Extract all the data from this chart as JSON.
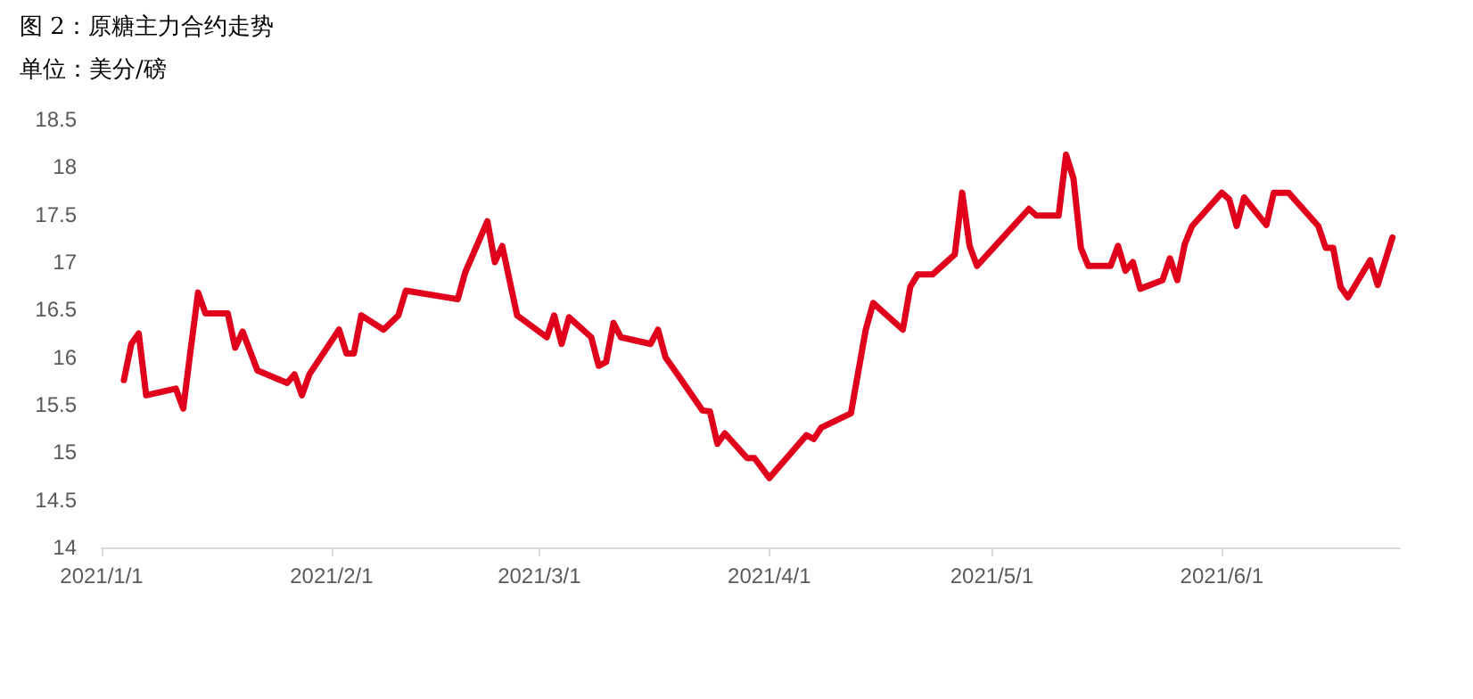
{
  "chart_data": {
    "type": "line",
    "title": "图 2：原糖主力合约走势",
    "subtitle": "单位：美分/磅",
    "x": [
      "2021-01-04",
      "2021-01-05",
      "2021-01-06",
      "2021-01-07",
      "2021-01-11",
      "2021-01-12",
      "2021-01-13",
      "2021-01-14",
      "2021-01-15",
      "2021-01-18",
      "2021-01-19",
      "2021-01-20",
      "2021-01-22",
      "2021-01-26",
      "2021-01-27",
      "2021-01-28",
      "2021-01-29",
      "2021-02-02",
      "2021-02-03",
      "2021-02-04",
      "2021-02-05",
      "2021-02-08",
      "2021-02-10",
      "2021-02-11",
      "2021-02-18",
      "2021-02-19",
      "2021-02-22",
      "2021-02-23",
      "2021-02-24",
      "2021-02-26",
      "2021-03-02",
      "2021-03-03",
      "2021-03-04",
      "2021-03-05",
      "2021-03-08",
      "2021-03-09",
      "2021-03-10",
      "2021-03-11",
      "2021-03-12",
      "2021-03-16",
      "2021-03-17",
      "2021-03-18",
      "2021-03-19",
      "2021-03-23",
      "2021-03-24",
      "2021-03-25",
      "2021-03-26",
      "2021-03-29",
      "2021-03-30",
      "2021-04-01",
      "2021-04-06",
      "2021-04-07",
      "2021-04-08",
      "2021-04-12",
      "2021-04-14",
      "2021-04-15",
      "2021-04-19",
      "2021-04-20",
      "2021-04-21",
      "2021-04-23",
      "2021-04-26",
      "2021-04-27",
      "2021-04-28",
      "2021-04-29",
      "2021-05-06",
      "2021-05-07",
      "2021-05-10",
      "2021-05-11",
      "2021-05-12",
      "2021-05-13",
      "2021-05-14",
      "2021-05-17",
      "2021-05-18",
      "2021-05-19",
      "2021-05-20",
      "2021-05-21",
      "2021-05-24",
      "2021-05-25",
      "2021-05-26",
      "2021-05-27",
      "2021-05-28",
      "2021-06-01",
      "2021-06-02",
      "2021-06-03",
      "2021-06-04",
      "2021-06-07",
      "2021-06-08",
      "2021-06-09",
      "2021-06-10",
      "2021-06-14",
      "2021-06-15",
      "2021-06-16",
      "2021-06-17",
      "2021-06-18",
      "2021-06-21",
      "2021-06-22",
      "2021-06-24"
    ],
    "series": [
      {
        "color": "#e0001b",
        "values": [
          15.76,
          16.14,
          16.25,
          15.6,
          15.67,
          15.46,
          16.08,
          16.68,
          16.46,
          16.46,
          16.1,
          16.27,
          15.86,
          15.73,
          15.82,
          15.6,
          15.82,
          16.29,
          16.04,
          16.04,
          16.44,
          16.29,
          16.44,
          16.7,
          16.61,
          16.89,
          17.43,
          17.0,
          17.17,
          16.44,
          16.21,
          16.44,
          16.14,
          16.42,
          16.21,
          15.91,
          15.95,
          16.36,
          16.21,
          16.14,
          16.29,
          16.0,
          15.89,
          15.44,
          15.43,
          15.09,
          15.2,
          14.94,
          14.94,
          14.73,
          15.18,
          15.14,
          15.26,
          15.41,
          16.29,
          16.57,
          16.29,
          16.74,
          16.87,
          16.87,
          17.08,
          17.73,
          17.17,
          16.96,
          17.56,
          17.49,
          17.49,
          18.13,
          17.88,
          17.15,
          16.96,
          16.96,
          17.17,
          16.91,
          17.0,
          16.72,
          16.81,
          17.04,
          16.81,
          17.19,
          17.38,
          17.73,
          17.66,
          17.38,
          17.68,
          17.39,
          17.73,
          17.73,
          17.73,
          17.38,
          17.15,
          17.15,
          16.74,
          16.63,
          17.02,
          16.76,
          17.26
        ]
      }
    ],
    "xlim": [
      "2021-01-01",
      "2021-06-25"
    ],
    "xticks": [
      {
        "value": "2021-01-01",
        "label": "2021/1/1"
      },
      {
        "value": "2021-02-01",
        "label": "2021/2/1"
      },
      {
        "value": "2021-03-01",
        "label": "2021/3/1"
      },
      {
        "value": "2021-04-01",
        "label": "2021/4/1"
      },
      {
        "value": "2021-05-01",
        "label": "2021/5/1"
      },
      {
        "value": "2021-06-01",
        "label": "2021/6/1"
      }
    ],
    "ylim": [
      14,
      18.5
    ],
    "yticks": [
      14,
      14.5,
      15,
      15.5,
      16,
      16.5,
      17,
      17.5,
      18,
      18.5
    ],
    "grid": false,
    "marker": "none",
    "line_style": "solid"
  }
}
